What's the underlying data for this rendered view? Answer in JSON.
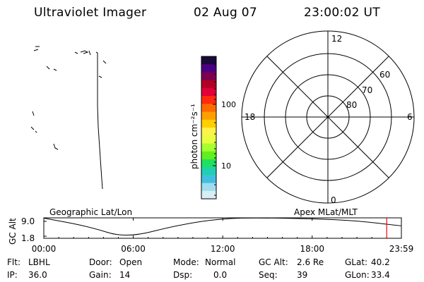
{
  "header": {
    "title": "Ultraviolet Imager",
    "date": "02 Aug 07",
    "time": "23:00:02 UT"
  },
  "colorbar": {
    "unit_label": "photon cm⁻²s⁻¹",
    "ticks": [
      "100",
      "10"
    ],
    "colors": [
      "#1a0a3a",
      "#4b0082",
      "#7b0050",
      "#b00025",
      "#e0003a",
      "#ff2a10",
      "#ff6a00",
      "#ff9e00",
      "#ffcf00",
      "#fff24a",
      "#e8ff40",
      "#a8ff30",
      "#60f020",
      "#20e060",
      "#20d0b0",
      "#40c0e0",
      "#a0dcee",
      "#d8eef4"
    ]
  },
  "polar_plot": {
    "mlt_labels": {
      "top": "12",
      "left": "18",
      "right": "6",
      "bottom": "0"
    },
    "lat_labels": [
      "60",
      "70",
      "80"
    ]
  },
  "timeline": {
    "left_title": "Geographic Lat/Lon",
    "right_title": "Apex MLat/MLT",
    "y_axis_label": "GC Alt",
    "y_ticks": [
      "9.0",
      "1.8"
    ],
    "x_ticks": [
      "00:00",
      "06:00",
      "12:00",
      "18:00",
      "23:59"
    ],
    "marker_color": "#ff0000"
  },
  "chart_data": {
    "type": "line",
    "title": "",
    "xlabel": "",
    "ylabel": "GC Alt",
    "xlim": [
      "00:00",
      "23:59"
    ],
    "ylim": [
      1.8,
      9.0
    ],
    "series": [
      {
        "x": [
          "00:00",
          "03:00",
          "05:30",
          "09:00",
          "12:00",
          "14:30",
          "18:00",
          "21:00",
          "23:59"
        ],
        "values": [
          8.9,
          6.0,
          1.8,
          6.5,
          8.8,
          9.0,
          8.7,
          8.0,
          6.2
        ]
      }
    ],
    "current_time": "23:00"
  },
  "status": {
    "row1": [
      {
        "label": "Flt:",
        "value": "LBHL"
      },
      {
        "label": "Door:",
        "value": "Open"
      },
      {
        "label": "Mode:",
        "value": "Normal"
      },
      {
        "label": "GC Alt:",
        "value": "2.6 Re"
      },
      {
        "label": "GLat:",
        "value": "40.2"
      }
    ],
    "row2": [
      {
        "label": "IP:",
        "value": "36.0"
      },
      {
        "label": "Gain:",
        "value": "14"
      },
      {
        "label": "Dsp:",
        "value": "0.0"
      },
      {
        "label": "Seq:",
        "value": "39"
      },
      {
        "label": "GLon:",
        "value": "33.4"
      }
    ]
  }
}
